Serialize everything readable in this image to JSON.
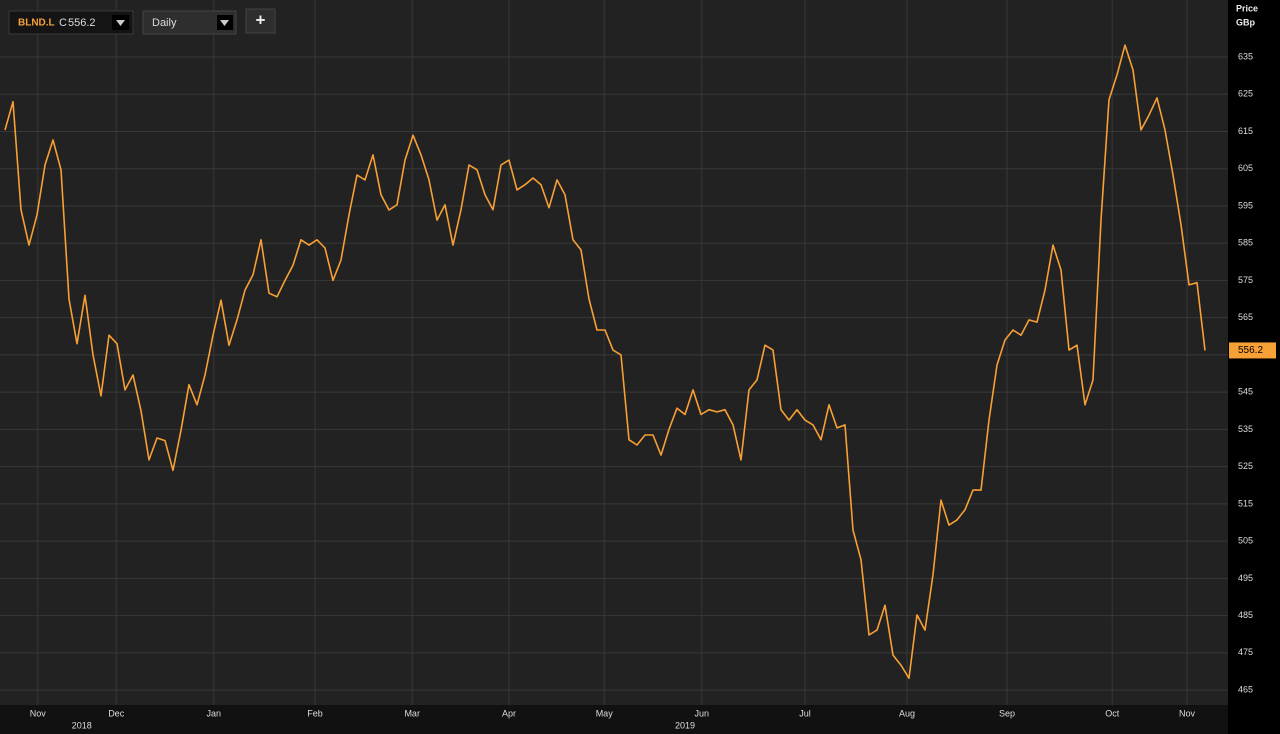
{
  "toolbar": {
    "symbol": "BLND.L",
    "close_prefix": "C",
    "interval": "Daily",
    "add": "+"
  },
  "chart_data": {
    "type": "line",
    "y_axis_title": "Price",
    "y_axis_unit": "GBp",
    "color": "#f7a035",
    "values": [
      615.4,
      623,
      594,
      584.5,
      592.6,
      606,
      612.7,
      604.7,
      570,
      558,
      571,
      555,
      544,
      560.3,
      558,
      545.6,
      549.6,
      540,
      526.8,
      532.7,
      532,
      524,
      534.8,
      547,
      541.6,
      549.6,
      560.3,
      569.7,
      557.6,
      564.4,
      572.4,
      576.5,
      585.9,
      571.6,
      570.6,
      575,
      579.1,
      585.9,
      584.5,
      585.9,
      583.7,
      575,
      580.5,
      592.6,
      603.3,
      602,
      608.7,
      598,
      593.9,
      595.3,
      607.3,
      614,
      608.7,
      602,
      591.2,
      595.3,
      584.5,
      594,
      606,
      604.7,
      598,
      594,
      606,
      607.3,
      599.3,
      600.7,
      602.5,
      600.7,
      594.5,
      602,
      598,
      585.9,
      583.2,
      570,
      561.7,
      561.7,
      556.3,
      555,
      532.2,
      530.8,
      533.5,
      533.5,
      528.1,
      535,
      540.7,
      539,
      545.6,
      539,
      540.3,
      539.7,
      540.3,
      536.2,
      526.8,
      545.6,
      548.3,
      557.6,
      556.3,
      540.3,
      537.5,
      540.3,
      537.5,
      536.2,
      532.2,
      541.6,
      535.4,
      536.2,
      508,
      500,
      479.8,
      481.1,
      487.8,
      474.4,
      471.7,
      468.2,
      485.2,
      481.1,
      496,
      516,
      509.3,
      510.7,
      513.4,
      518.7,
      518.7,
      537.5,
      552.3,
      559,
      561.7,
      560.3,
      564.4,
      563.8,
      572.4,
      584.5,
      577.8,
      556.3,
      557.6,
      541.6,
      548.3,
      591.2,
      623.5,
      630.2,
      638.2,
      631.5,
      615.4,
      619.4,
      624,
      615.4,
      603.3,
      590,
      573.8,
      574.4,
      556.2
    ],
    "xlim": [
      0,
      150
    ],
    "xticks": [
      {
        "value": 4.1,
        "label": "Nov"
      },
      {
        "value": 13.9,
        "label": "Dec"
      },
      {
        "value": 26.1,
        "label": "Jan"
      },
      {
        "value": 38.75,
        "label": "Feb"
      },
      {
        "value": 50.9,
        "label": "Mar"
      },
      {
        "value": 63,
        "label": "Apr"
      },
      {
        "value": 74.9,
        "label": "May"
      },
      {
        "value": 87.1,
        "label": "Jun"
      },
      {
        "value": 100,
        "label": "Jul"
      },
      {
        "value": 112.75,
        "label": "Aug"
      },
      {
        "value": 125.25,
        "label": "Sep"
      },
      {
        "value": 138.4,
        "label": "Oct"
      },
      {
        "value": 147.75,
        "label": "Nov"
      }
    ],
    "year_labels": [
      {
        "value": 9.6,
        "label": "2018"
      },
      {
        "value": 85,
        "label": "2019"
      }
    ],
    "ylim": [
      461,
      650.3
    ],
    "yticks": [
      465,
      475,
      485,
      495,
      505,
      515,
      525,
      535,
      545,
      555,
      565,
      575,
      585,
      595,
      605,
      615,
      625,
      635
    ],
    "grid": true
  }
}
